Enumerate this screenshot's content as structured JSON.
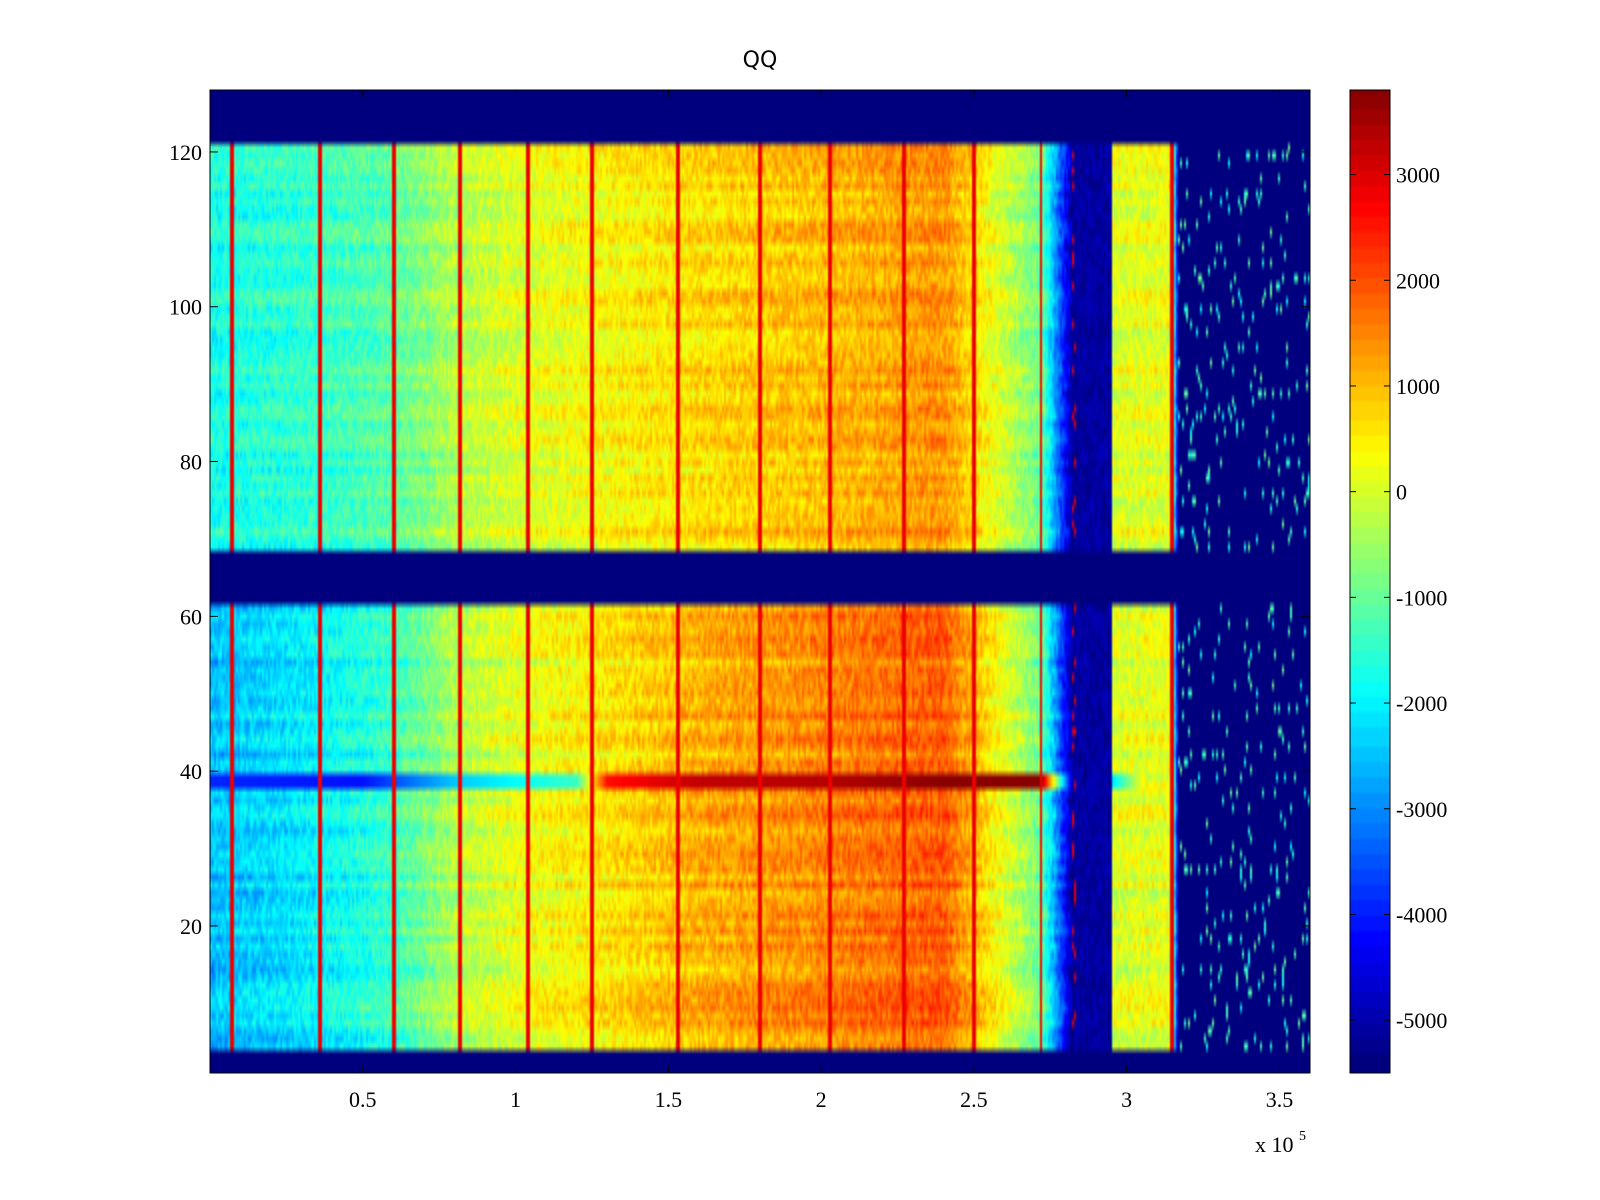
{
  "chart_data": {
    "type": "heatmap",
    "title": "QQ",
    "xlabel": "",
    "ylabel": "",
    "x_exponent_label": "x 10",
    "x_exponent": "5",
    "xlim": [
      0,
      3.6
    ],
    "ylim": [
      1,
      128
    ],
    "x_ticks": [
      0.5,
      1,
      1.5,
      2,
      2.5,
      3,
      3.5
    ],
    "x_tick_labels": [
      "0.5",
      "1",
      "1.5",
      "2",
      "2.5",
      "3",
      "3.5"
    ],
    "y_ticks": [
      20,
      40,
      60,
      80,
      100,
      120
    ],
    "y_tick_labels": [
      "20",
      "40",
      "60",
      "80",
      "100",
      "120"
    ],
    "colormap": "jet",
    "colorbar": {
      "clim": [
        -5500,
        3800
      ],
      "ticks": [
        3000,
        2000,
        1000,
        0,
        -1000,
        -2000,
        -3000,
        -4000,
        -5000
      ],
      "tick_labels": [
        "3000",
        "2000",
        "1000",
        "0",
        "-1000",
        "-2000",
        "-3000",
        "-4000",
        "-5000"
      ]
    },
    "description_values": {
      "empty_row_bands": [
        [
          1,
          4
        ],
        [
          61.5,
          68
        ],
        [
          121.5,
          128
        ]
      ],
      "high_row": 39,
      "low_value_columns_x": [
        2.83,
        2.95
      ],
      "sparse_region_x_start": 3.17,
      "strong_vertical_lines_x": [
        0.07,
        0.36,
        0.6,
        0.82,
        1.04,
        1.25,
        1.53,
        1.8,
        2.03,
        2.27,
        2.5,
        2.72,
        2.83,
        3.15
      ]
    },
    "column_profile_x": [
      0,
      0.3,
      0.6,
      0.8,
      1.0,
      1.3,
      1.6,
      2.0,
      2.4,
      2.72,
      2.83,
      2.95,
      3.15,
      3.17,
      3.6
    ],
    "column_profile_upper": [
      -1800,
      -1600,
      -1200,
      -400,
      0,
      300,
      600,
      900,
      1300,
      -1000,
      -5500,
      0,
      100,
      -5500,
      -5500
    ],
    "column_profile_lower": [
      -2600,
      -2200,
      -1500,
      -400,
      100,
      500,
      1000,
      1400,
      1800,
      -1000,
      -5500,
      0,
      100,
      -5500,
      -5500
    ],
    "row39_profile_x": [
      0,
      0.5,
      0.8,
      1.2,
      1.3,
      1.6,
      2.0,
      2.4,
      2.72,
      2.83,
      3.05
    ],
    "row39_profile_value": [
      -4000,
      -4200,
      -2500,
      -1500,
      2500,
      3200,
      3300,
      3700,
      3700,
      -5500,
      200
    ]
  }
}
